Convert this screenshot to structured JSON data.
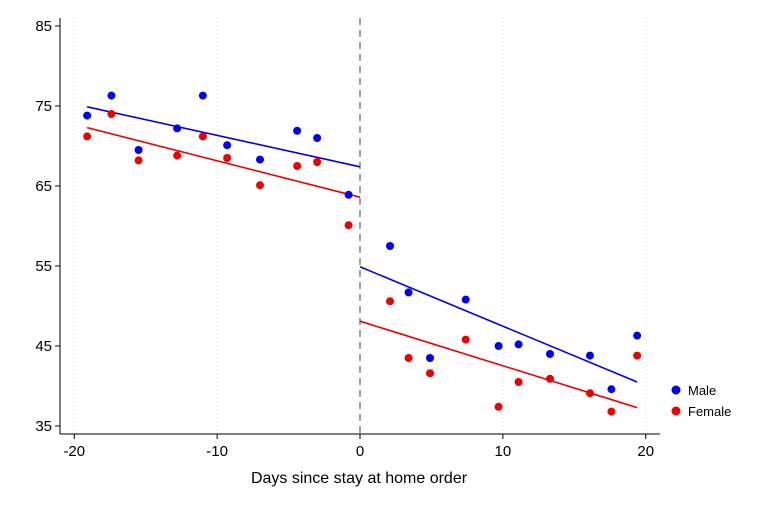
{
  "chart_data": {
    "type": "scatter",
    "xlabel": "Days since stay at home order",
    "ylabel": "",
    "xlim": [
      -21,
      21
    ],
    "ylim": [
      34,
      86
    ],
    "x_ticks": [
      -20,
      -10,
      0,
      10,
      20
    ],
    "y_ticks": [
      35,
      45,
      55,
      65,
      75,
      85
    ],
    "x_tick_labels": [
      "-20",
      "-10",
      "0",
      "10",
      "20"
    ],
    "y_tick_labels": [
      "35",
      "45",
      "55",
      "65",
      "75",
      "85"
    ],
    "vertical_gridlines": "dotted at x ticks",
    "cutoff_line": {
      "x": 0,
      "style": "dashed"
    },
    "legend_position": "right-bottom",
    "series": [
      {
        "name": "Male",
        "color": "#0000ee",
        "points": [
          {
            "x": -19.1,
            "y": 73.8
          },
          {
            "x": -17.4,
            "y": 76.3
          },
          {
            "x": -15.5,
            "y": 69.5
          },
          {
            "x": -12.8,
            "y": 72.2
          },
          {
            "x": -11.0,
            "y": 76.3
          },
          {
            "x": -9.3,
            "y": 70.1
          },
          {
            "x": -7.0,
            "y": 68.3
          },
          {
            "x": -4.4,
            "y": 71.9
          },
          {
            "x": -3.0,
            "y": 71.0
          },
          {
            "x": -0.8,
            "y": 63.9
          },
          {
            "x": 2.1,
            "y": 57.5
          },
          {
            "x": 3.4,
            "y": 51.7
          },
          {
            "x": 4.9,
            "y": 43.5
          },
          {
            "x": 7.4,
            "y": 50.8
          },
          {
            "x": 9.7,
            "y": 45.0
          },
          {
            "x": 11.1,
            "y": 45.2
          },
          {
            "x": 13.3,
            "y": 44.0
          },
          {
            "x": 16.1,
            "y": 43.8
          },
          {
            "x": 17.6,
            "y": 39.6
          },
          {
            "x": 19.4,
            "y": 46.3
          }
        ],
        "fit_lines": [
          {
            "x": [
              -19.1,
              0
            ],
            "y": [
              74.9,
              67.4
            ]
          },
          {
            "x": [
              0,
              19.4
            ],
            "y": [
              54.9,
              40.5
            ]
          }
        ]
      },
      {
        "name": "Female",
        "color": "#ee0000",
        "points": [
          {
            "x": -19.1,
            "y": 71.2
          },
          {
            "x": -17.4,
            "y": 74.0
          },
          {
            "x": -15.5,
            "y": 68.2
          },
          {
            "x": -12.8,
            "y": 68.8
          },
          {
            "x": -11.0,
            "y": 71.2
          },
          {
            "x": -9.3,
            "y": 68.5
          },
          {
            "x": -7.0,
            "y": 65.1
          },
          {
            "x": -4.4,
            "y": 67.5
          },
          {
            "x": -3.0,
            "y": 68.0
          },
          {
            "x": -0.8,
            "y": 60.1
          },
          {
            "x": 2.1,
            "y": 50.6
          },
          {
            "x": 3.4,
            "y": 43.5
          },
          {
            "x": 4.9,
            "y": 41.6
          },
          {
            "x": 7.4,
            "y": 45.8
          },
          {
            "x": 9.7,
            "y": 37.4
          },
          {
            "x": 11.1,
            "y": 40.5
          },
          {
            "x": 13.3,
            "y": 40.9
          },
          {
            "x": 16.1,
            "y": 39.1
          },
          {
            "x": 17.6,
            "y": 36.8
          },
          {
            "x": 19.4,
            "y": 43.8
          }
        ],
        "fit_lines": [
          {
            "x": [
              -19.1,
              0
            ],
            "y": [
              72.3,
              63.6
            ]
          },
          {
            "x": [
              0,
              19.4
            ],
            "y": [
              48.1,
              37.3
            ]
          }
        ]
      }
    ]
  }
}
